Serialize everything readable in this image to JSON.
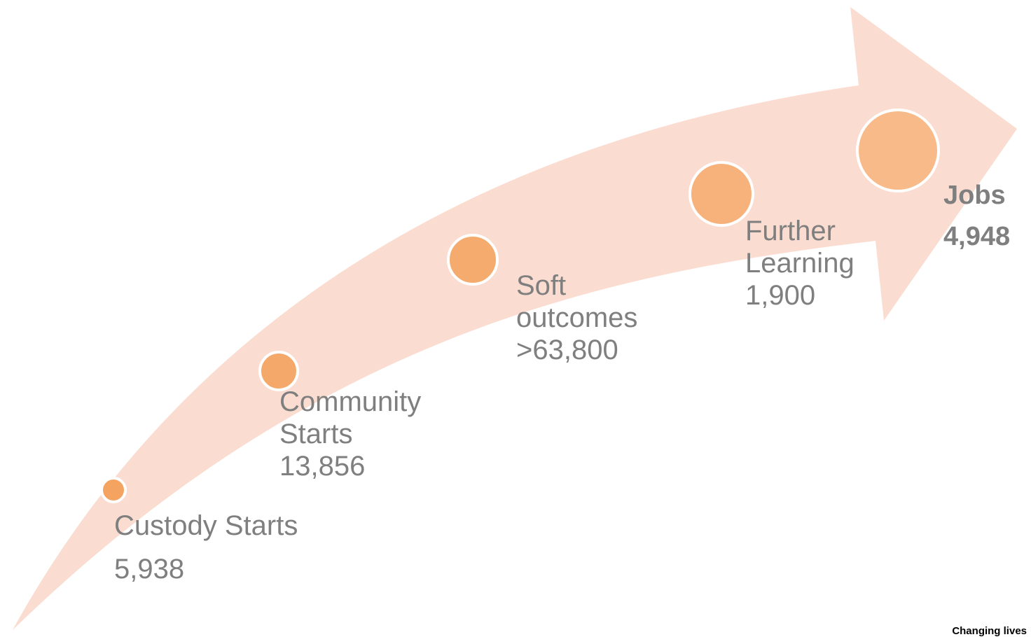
{
  "arrow_color": "#fbdcd0",
  "milestone_fill_colors": [
    "#f4a460",
    "#f4a86a",
    "#f5ab6e",
    "#f7b27b",
    "#f8ba88"
  ],
  "milestone_border_color": "#ffffff",
  "label_color": "#7f7f7f",
  "milestones": [
    {
      "title_lines": [
        "Custody Starts"
      ],
      "value": "5,938"
    },
    {
      "title_lines": [
        "Community",
        "Starts"
      ],
      "value": "13,856"
    },
    {
      "title_lines": [
        "Soft",
        "outcomes"
      ],
      "value": ">63,800"
    },
    {
      "title_lines": [
        "Further",
        "Learning"
      ],
      "value": "1,900"
    },
    {
      "title_lines": [
        "Jobs"
      ],
      "value": "4,948"
    }
  ],
  "footer_text": "Changing lives"
}
